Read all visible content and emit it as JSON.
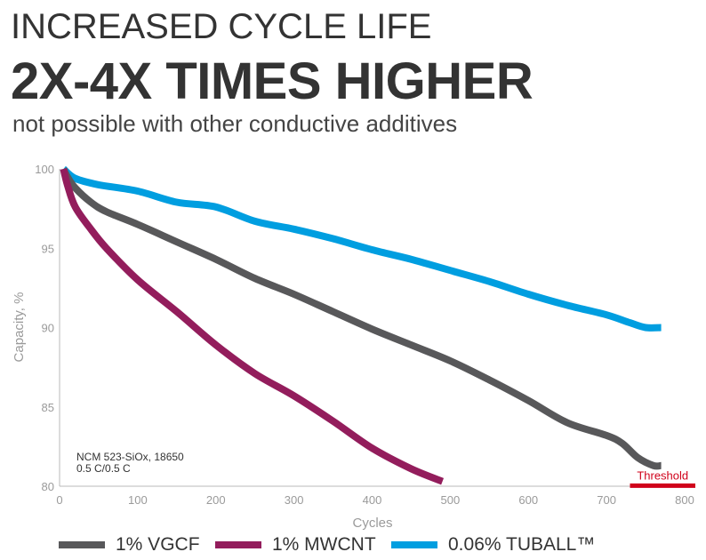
{
  "header": {
    "line1": "INCREASED CYCLE LIFE",
    "line2": "2X-4X TIMES HIGHER",
    "line3": "not possible with other conductive additives"
  },
  "chart_data": {
    "type": "line",
    "xlabel": "Cycles",
    "ylabel": "Capacity, %",
    "xlim": [
      0,
      800
    ],
    "ylim": [
      80,
      100
    ],
    "xticks": [
      0,
      100,
      200,
      300,
      400,
      500,
      600,
      700,
      800
    ],
    "yticks": [
      80,
      85,
      90,
      95,
      100
    ],
    "grid": false,
    "legend_position": "bottom",
    "annotation": [
      "NCM 523-SiOx, 18650",
      "0.5 C/0.5 C"
    ],
    "threshold": {
      "label": "Threshold",
      "value": 80.2,
      "x_range": [
        730,
        800
      ],
      "color": "#d0021b"
    },
    "series": [
      {
        "name": "1% VGCF",
        "color": "#58585a",
        "x": [
          5,
          10,
          20,
          40,
          60,
          100,
          150,
          200,
          250,
          300,
          350,
          400,
          450,
          500,
          550,
          600,
          650,
          700,
          720,
          740,
          760,
          770
        ],
        "y": [
          100,
          99.5,
          98.8,
          97.9,
          97.3,
          96.5,
          95.4,
          94.3,
          93.1,
          92.1,
          91.0,
          89.9,
          88.9,
          87.9,
          86.7,
          85.4,
          84.0,
          83.2,
          82.7,
          81.8,
          81.3,
          81.3
        ]
      },
      {
        "name": "1% MWCNT",
        "color": "#931d5c",
        "x": [
          5,
          10,
          20,
          40,
          60,
          100,
          150,
          200,
          250,
          300,
          350,
          400,
          450,
          490
        ],
        "y": [
          100,
          99.0,
          97.6,
          96.2,
          95.0,
          93.0,
          91.0,
          88.9,
          87.1,
          85.7,
          84.1,
          82.4,
          81.1,
          80.3
        ]
      },
      {
        "name": "0.06% TUBALL™",
        "color": "#009ee0",
        "x": [
          5,
          20,
          50,
          100,
          150,
          200,
          250,
          300,
          350,
          400,
          450,
          500,
          550,
          600,
          650,
          700,
          730,
          750,
          770
        ],
        "y": [
          100,
          99.4,
          99.0,
          98.6,
          97.9,
          97.6,
          96.7,
          96.2,
          95.6,
          94.9,
          94.3,
          93.6,
          92.9,
          92.1,
          91.4,
          90.8,
          90.3,
          90.0,
          90.0
        ]
      }
    ]
  }
}
